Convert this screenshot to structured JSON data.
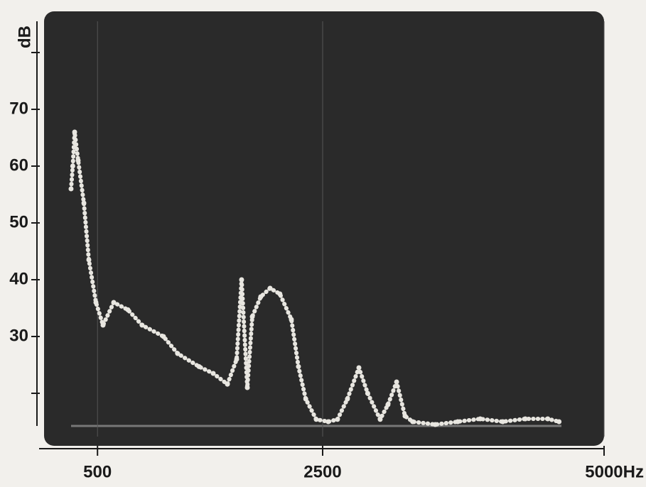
{
  "chart_data": {
    "type": "line",
    "y_label": "dB",
    "x": [
      265,
      280,
      297,
      328,
      379,
      423,
      486,
      549,
      644,
      770,
      896,
      1086,
      1212,
      1402,
      1528,
      1654,
      1736,
      1780,
      1831,
      1875,
      1950,
      2033,
      2120,
      2222,
      2285,
      2350,
      2443,
      2550,
      2632,
      2720,
      2822,
      2900,
      3011,
      3080,
      3157,
      3232,
      3300,
      3500,
      3700,
      3900,
      4100,
      4300,
      4500,
      4600
    ],
    "series": [
      {
        "color": "#e8e6e0",
        "values": [
          56,
          60,
          66,
          61,
          53.5,
          43.5,
          36,
          32,
          36,
          34.7,
          32,
          30,
          27,
          24.7,
          23.5,
          21.6,
          26,
          40,
          21,
          33.5,
          37,
          38.5,
          37.5,
          33,
          24.7,
          19,
          15.4,
          15,
          15.4,
          19,
          24.5,
          20,
          15.4,
          18,
          22,
          16,
          15,
          14.5,
          15,
          15.5,
          15,
          15.5,
          15.5,
          15
        ]
      }
    ],
    "xlim": [
      0,
      5000
    ],
    "ylim": [
      11,
      87
    ],
    "xticks": [
      500,
      2500,
      {
        "value": 5000,
        "label": "5000Hz"
      }
    ],
    "yticks": [
      30,
      40,
      50,
      60,
      70
    ],
    "minor_yticks": [
      20,
      80
    ],
    "screen_color": "#2a2a2a"
  }
}
